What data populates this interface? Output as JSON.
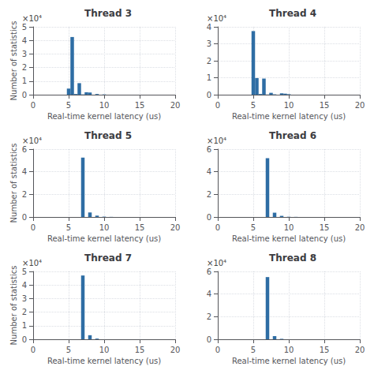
{
  "chart_data": [
    {
      "type": "bar",
      "title": "Thread 3",
      "color": "#2e6da4",
      "x": [
        5.0,
        5.5,
        6.0,
        6.5,
        7.0,
        7.5,
        8.0,
        9.0,
        10.0
      ],
      "values": [
        0.45,
        4.25,
        0.05,
        0.85,
        0.02,
        0.18,
        0.16,
        0.05,
        0.02
      ],
      "xlabel": "Real-time kernel latency (us)",
      "ylabel": "Number of statistics",
      "xlim": [
        0,
        20
      ],
      "xticks": [
        0,
        5,
        10,
        15,
        20
      ],
      "ylim": [
        0,
        5
      ],
      "yticks": [
        0,
        1,
        2,
        3,
        4,
        5
      ],
      "grid": true,
      "annotation": "×10⁴"
    },
    {
      "type": "bar",
      "title": "Thread 4",
      "color": "#2e6da4",
      "x": [
        5.0,
        5.5,
        6.0,
        6.5,
        7.0,
        7.5,
        8.0,
        9.0,
        9.5,
        10.0
      ],
      "values": [
        3.75,
        0.98,
        0.04,
        0.95,
        0.01,
        0.11,
        0.02,
        0.08,
        0.06,
        0.03
      ],
      "xlabel": "Real-time kernel latency (us)",
      "xlim": [
        0,
        20
      ],
      "xticks": [
        0,
        5,
        10,
        15,
        20
      ],
      "ylim": [
        0,
        4
      ],
      "yticks": [
        0,
        1,
        2,
        3,
        4
      ],
      "grid": true,
      "annotation": "×10⁴"
    },
    {
      "type": "bar",
      "title": "Thread 5",
      "color": "#2e6da4",
      "x": [
        7.0,
        8.0,
        9.0,
        10.0,
        11.0
      ],
      "values": [
        5.25,
        0.4,
        0.12,
        0.03,
        0.01
      ],
      "xlabel": "Real-time kernel latency (us)",
      "ylabel": "Number of statistics",
      "xlim": [
        0,
        20
      ],
      "xticks": [
        0,
        5,
        10,
        15,
        20
      ],
      "ylim": [
        0,
        6
      ],
      "yticks": [
        0,
        2,
        4,
        6
      ],
      "grid": true,
      "annotation": "×10⁴"
    },
    {
      "type": "bar",
      "title": "Thread 6",
      "color": "#2e6da4",
      "x": [
        7.0,
        8.0,
        9.0,
        10.0,
        11.0
      ],
      "values": [
        5.2,
        0.38,
        0.1,
        0.02,
        0.01
      ],
      "xlabel": "Real-time kernel latency (us)",
      "xlim": [
        0,
        20
      ],
      "xticks": [
        0,
        5,
        10,
        15,
        20
      ],
      "ylim": [
        0,
        6
      ],
      "yticks": [
        0,
        2,
        4,
        6
      ],
      "grid": true,
      "annotation": "×10⁴"
    },
    {
      "type": "bar",
      "title": "Thread 7",
      "color": "#2e6da4",
      "x": [
        7.0,
        8.0,
        9.0
      ],
      "values": [
        4.7,
        0.3,
        0.05
      ],
      "xlabel": "Real-time kernel latency (us)",
      "ylabel": "Number of statistics",
      "xlim": [
        0,
        20
      ],
      "xticks": [
        0,
        5,
        10,
        15,
        20
      ],
      "ylim": [
        0,
        5
      ],
      "yticks": [
        0,
        1,
        2,
        3,
        4,
        5
      ],
      "grid": true,
      "annotation": "×10⁴"
    },
    {
      "type": "bar",
      "title": "Thread 8",
      "color": "#2e6da4",
      "x": [
        7.0,
        8.0,
        9.0
      ],
      "values": [
        5.5,
        0.28,
        0.04
      ],
      "xlabel": "Real-time kernel latency (us)",
      "xlim": [
        0,
        20
      ],
      "xticks": [
        0,
        5,
        10,
        15,
        20
      ],
      "ylim": [
        0,
        6
      ],
      "yticks": [
        0,
        2,
        4,
        6
      ],
      "grid": true,
      "annotation": "×10⁴"
    }
  ]
}
